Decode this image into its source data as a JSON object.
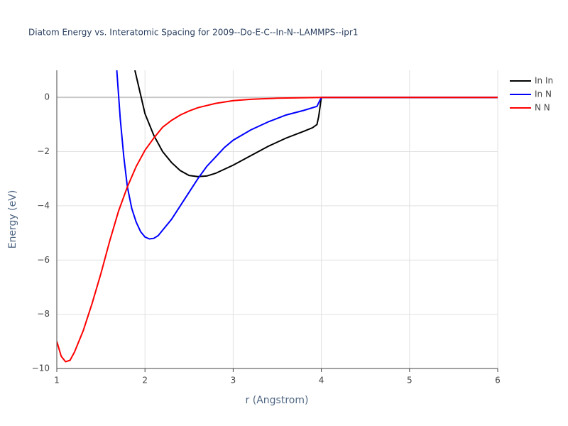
{
  "chart_data": {
    "type": "line",
    "title": "Diatom Energy vs. Interatomic Spacing for 2009--Do-E-C--In-N--LAMMPS--ipr1",
    "x_label": "r (Angstrom)",
    "y_label": "Energy (eV)",
    "xlim": [
      1,
      6
    ],
    "ylim": [
      -10,
      1
    ],
    "xticks": [
      1,
      2,
      3,
      4,
      5,
      6
    ],
    "yticks": [
      {
        "value": -10,
        "label": "−10"
      },
      {
        "value": -8,
        "label": "−8"
      },
      {
        "value": -6,
        "label": "−6"
      },
      {
        "value": -4,
        "label": "−4"
      },
      {
        "value": -2,
        "label": "−2"
      },
      0
    ],
    "grid": true,
    "zeroline": true,
    "legend": "top-right",
    "series": [
      {
        "name": "In In",
        "color": "#000000",
        "x": [
          1.886,
          1.95,
          2.0,
          2.1,
          2.2,
          2.3,
          2.4,
          2.5,
          2.6,
          2.7,
          2.8,
          3.0,
          3.2,
          3.4,
          3.6,
          3.8,
          3.9,
          3.95,
          3.97,
          4.0,
          4.5,
          5.0,
          5.5,
          6.0
        ],
        "values": [
          1.0,
          0.1,
          -0.6,
          -1.4,
          -2.0,
          -2.4,
          -2.7,
          -2.88,
          -2.92,
          -2.9,
          -2.8,
          -2.5,
          -2.15,
          -1.8,
          -1.5,
          -1.25,
          -1.12,
          -1.0,
          -0.7,
          0,
          0,
          0,
          0,
          0
        ]
      },
      {
        "name": "In N",
        "color": "#0000ff",
        "x": [
          1.68,
          1.72,
          1.76,
          1.8,
          1.85,
          1.9,
          1.95,
          2.0,
          2.05,
          2.1,
          2.15,
          2.2,
          2.3,
          2.4,
          2.5,
          2.6,
          2.7,
          2.8,
          2.9,
          3.0,
          3.2,
          3.4,
          3.6,
          3.8,
          3.95,
          4.0,
          5.0,
          6.0
        ],
        "values": [
          1.0,
          -0.8,
          -2.2,
          -3.3,
          -4.1,
          -4.6,
          -4.95,
          -5.15,
          -5.22,
          -5.2,
          -5.1,
          -4.9,
          -4.5,
          -4.0,
          -3.5,
          -3.0,
          -2.55,
          -2.2,
          -1.85,
          -1.58,
          -1.2,
          -0.9,
          -0.65,
          -0.48,
          -0.33,
          0,
          0,
          0
        ]
      },
      {
        "name": "N N",
        "color": "#ff0000",
        "x": [
          1.0,
          1.05,
          1.1,
          1.15,
          1.2,
          1.3,
          1.4,
          1.5,
          1.6,
          1.7,
          1.8,
          1.9,
          2.0,
          2.1,
          2.2,
          2.3,
          2.4,
          2.5,
          2.6,
          2.8,
          3.0,
          3.2,
          3.5,
          4.0,
          5.0,
          6.0
        ],
        "values": [
          -9.0,
          -9.55,
          -9.75,
          -9.7,
          -9.4,
          -8.6,
          -7.6,
          -6.5,
          -5.3,
          -4.2,
          -3.3,
          -2.55,
          -1.95,
          -1.5,
          -1.1,
          -0.85,
          -0.65,
          -0.5,
          -0.38,
          -0.22,
          -0.12,
          -0.07,
          -0.03,
          0,
          0,
          0
        ]
      }
    ]
  }
}
